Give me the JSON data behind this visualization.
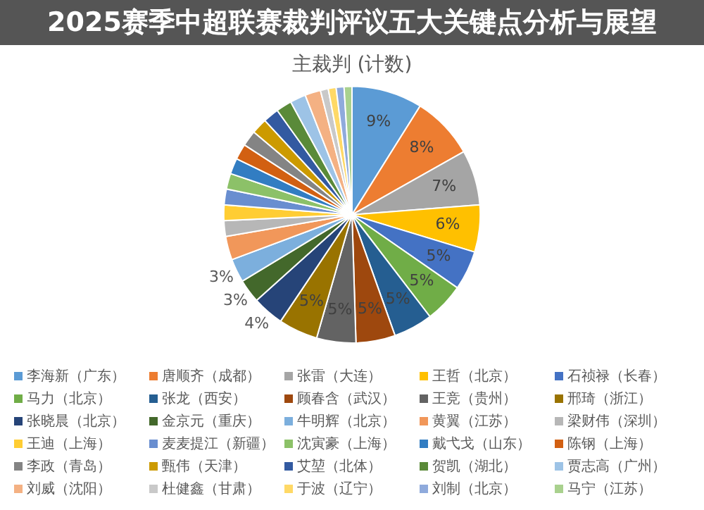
{
  "chart_data": {
    "type": "pie",
    "title": "主裁判 (计数)",
    "subtitle": "2025赛季中超联赛裁判评议五大关键点分析与展望",
    "legend": "bottom",
    "categories": [
      "李海新（广东）",
      "唐顺齐（成都）",
      "张雷（大连）",
      "王哲（北京）",
      "石祯禄（长春）",
      "马力（北京）",
      "张龙（西安）",
      "顾春含（武汉）",
      "王竞（贵州）",
      "邢琦（浙江）",
      "张晓晨（北京）",
      "金京元（重庆）",
      "牛明辉（北京）",
      "黄翼（江苏）",
      "梁财伟（深圳）",
      "王迪（上海）",
      "麦麦提江（新疆）",
      "沈寅豪（上海）",
      "戴弋戈（山东）",
      "陈钢（上海）",
      "李政（青岛）",
      "甄伟（天津）",
      "艾堃（北体）",
      "贺凯（湖北）",
      "贾志高（广州）",
      "刘威（沈阳）",
      "杜健鑫（甘肃）",
      "于波（辽宁）",
      "刘制（北京）",
      "马宁（江苏）"
    ],
    "values": [
      9,
      8,
      7,
      6,
      5,
      5,
      5,
      5,
      5,
      5,
      4,
      3,
      3,
      3,
      2,
      2,
      2,
      2,
      2,
      2,
      2,
      2,
      2,
      2,
      2,
      2,
      1,
      1,
      1,
      1
    ],
    "value_labels": [
      "9%",
      "8%",
      "7%",
      "6%",
      "5%",
      "5%",
      "5%",
      "5%",
      "5%",
      "5%",
      "4%",
      "3%",
      "3%",
      null,
      null,
      null,
      null,
      null,
      null,
      null,
      null,
      null,
      null,
      null,
      null,
      null,
      null,
      null,
      null,
      null
    ],
    "colors": [
      "#5b9bd5",
      "#ed7d31",
      "#a5a5a5",
      "#ffc000",
      "#4472c4",
      "#70ad47",
      "#255e91",
      "#9e480e",
      "#636363",
      "#997300",
      "#264478",
      "#43682b",
      "#7cafdd",
      "#f1975a",
      "#b7b7b7",
      "#ffcd33",
      "#698ed0",
      "#8cc168",
      "#327dc2",
      "#d26012",
      "#848484",
      "#cc9a00",
      "#335aa1",
      "#5a8a39",
      "#9dc3e6",
      "#f4b183",
      "#c9c9c9",
      "#ffd966",
      "#8faadc",
      "#a9d18e"
    ]
  }
}
